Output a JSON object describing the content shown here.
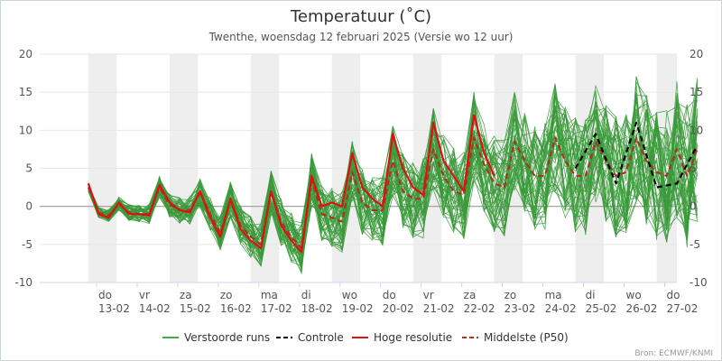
{
  "chart_data": {
    "type": "line",
    "title": "Temperatuur (˚C)",
    "subtitle": "Twenthe, woensdag 12 februari 2025 (Versie wo 12 uur)",
    "credit": "Bron: ECMWF/KNMI",
    "ylim": [
      -10,
      20
    ],
    "yticks": [
      "-10",
      "-5",
      "0",
      "5",
      "10",
      "15",
      "20"
    ],
    "x_day_range": [
      0,
      15
    ],
    "x_tick_days": [
      {
        "day": "do",
        "date": "13-02"
      },
      {
        "day": "vr",
        "date": "14-02"
      },
      {
        "day": "za",
        "date": "15-02"
      },
      {
        "day": "zo",
        "date": "16-02"
      },
      {
        "day": "ma",
        "date": "17-02"
      },
      {
        "day": "di",
        "date": "18-02"
      },
      {
        "day": "wo",
        "date": "19-02"
      },
      {
        "day": "do",
        "date": "20-02"
      },
      {
        "day": "vr",
        "date": "21-02"
      },
      {
        "day": "za",
        "date": "22-02"
      },
      {
        "day": "zo",
        "date": "23-02"
      },
      {
        "day": "ma",
        "date": "24-02"
      },
      {
        "day": "di",
        "date": "25-02"
      },
      {
        "day": "wo",
        "date": "26-02"
      },
      {
        "day": "do",
        "date": "27-02"
      }
    ],
    "shaded_days": [
      1,
      3,
      5,
      7,
      9,
      11,
      13,
      15
    ],
    "legend": [
      {
        "label": "Verstoorde runs",
        "color": "#44aa44",
        "style": "solid"
      },
      {
        "label": "Controle",
        "color": "#000000",
        "style": "dashed"
      },
      {
        "label": "Hoge resolutie",
        "color": "#dd1111",
        "style": "solid"
      },
      {
        "label": "Middelste (P50)",
        "color": "#aa3322",
        "style": "dashed"
      }
    ],
    "series": [
      {
        "name": "Controle",
        "color": "#000000",
        "x": [
          12.5,
          13.0,
          13.5,
          14.0,
          14.5,
          15.0,
          15.5
        ],
        "values": [
          5.0,
          9.5,
          3.0,
          11.0,
          2.5,
          3.0,
          8.0
        ]
      },
      {
        "name": "Hoge resolutie",
        "color": "#dd1111",
        "x": [
          0.5,
          0.75,
          1.0,
          1.25,
          1.5,
          1.75,
          2.0,
          2.25,
          2.5,
          2.75,
          3.0,
          3.25,
          3.5,
          3.75,
          4.0,
          4.25,
          4.5,
          4.75,
          5.0,
          5.25,
          5.5,
          5.75,
          6.0,
          6.25,
          6.5,
          6.75,
          7.0,
          7.25,
          7.5,
          7.75,
          8.0,
          8.25,
          8.5,
          8.75,
          9.0,
          9.25,
          9.5,
          9.75,
          10.0,
          10.25,
          10.5
        ],
        "values": [
          3.0,
          -1.0,
          -1.5,
          0.5,
          -1.0,
          -1.0,
          -1.2,
          2.8,
          0.5,
          -0.5,
          -0.8,
          2.0,
          -1.5,
          -4.0,
          1.0,
          -3.0,
          -4.5,
          -5.5,
          2.0,
          -2.5,
          -4.5,
          -6.0,
          4.0,
          0.0,
          0.5,
          0.0,
          7.0,
          2.5,
          1.0,
          0.0,
          9.5,
          5.0,
          2.5,
          1.5,
          11.0,
          6.0,
          4.0,
          2.0,
          12.0,
          7.0,
          4.0
        ]
      },
      {
        "name": "Middelste (P50)",
        "color": "#aa3322",
        "x": [
          0.5,
          0.75,
          1.0,
          1.25,
          1.5,
          1.75,
          2.0,
          2.25,
          2.5,
          2.75,
          3.0,
          3.25,
          3.5,
          3.75,
          4.0,
          4.25,
          4.5,
          4.75,
          5.0,
          5.25,
          5.5,
          5.75,
          6.0,
          6.25,
          6.5,
          6.75,
          7.0,
          7.25,
          7.5,
          7.75,
          8.0,
          8.25,
          8.5,
          8.75,
          9.0,
          9.25,
          9.5,
          9.75,
          10.0,
          10.25,
          10.5,
          10.75,
          11.0,
          11.25,
          11.5,
          11.75,
          12.0,
          12.25,
          12.5,
          12.75,
          13.0,
          13.25,
          13.5,
          13.75,
          14.0,
          14.25,
          14.5,
          14.75,
          15.0,
          15.25,
          15.5
        ],
        "values": [
          2.5,
          -0.8,
          -1.2,
          0.3,
          -0.8,
          -1.0,
          -1.0,
          2.5,
          0.2,
          -0.5,
          -0.5,
          1.8,
          -1.0,
          -3.5,
          0.8,
          -2.5,
          -4.0,
          -5.0,
          1.8,
          -2.0,
          -4.0,
          -5.5,
          3.5,
          -1.0,
          -1.5,
          -2.0,
          4.5,
          0.5,
          -0.5,
          -0.5,
          6.0,
          2.0,
          1.0,
          1.0,
          7.5,
          4.0,
          2.0,
          1.5,
          9.0,
          5.5,
          3.0,
          2.5,
          8.5,
          6.0,
          4.0,
          4.0,
          9.0,
          6.0,
          4.0,
          4.0,
          8.5,
          6.0,
          4.0,
          4.5,
          9.0,
          6.0,
          4.5,
          4.0,
          7.5,
          4.0,
          7.5
        ]
      }
    ],
    "ensemble_members": 50
  }
}
